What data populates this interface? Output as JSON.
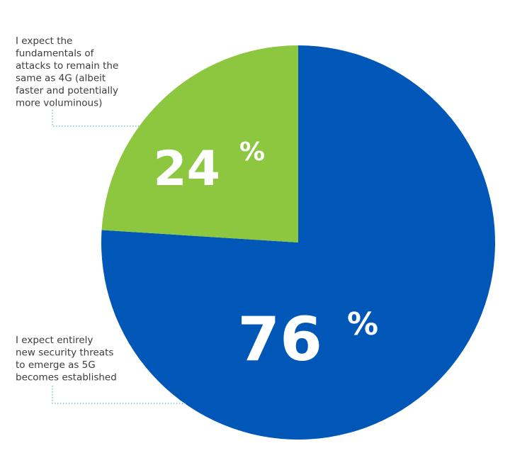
{
  "chart_data": {
    "type": "pie",
    "slices": [
      {
        "label_lines": [
          "I expect entirely",
          "new security threats",
          "to emerge as 5G",
          "becomes established"
        ],
        "value": 76,
        "display_number": "76",
        "display_unit": "%",
        "color": "#0057b8"
      },
      {
        "label_lines": [
          "I expect the",
          "fundamentals of",
          "attacks to remain the",
          "same as 4G (albeit",
          "faster and potentially",
          "more voluminous)"
        ],
        "value": 24,
        "display_number": "24",
        "display_unit": "%",
        "color": "#8dc63f"
      }
    ],
    "leader_line_color": "#5bb4d8",
    "text_color": "#3c3c3c"
  }
}
